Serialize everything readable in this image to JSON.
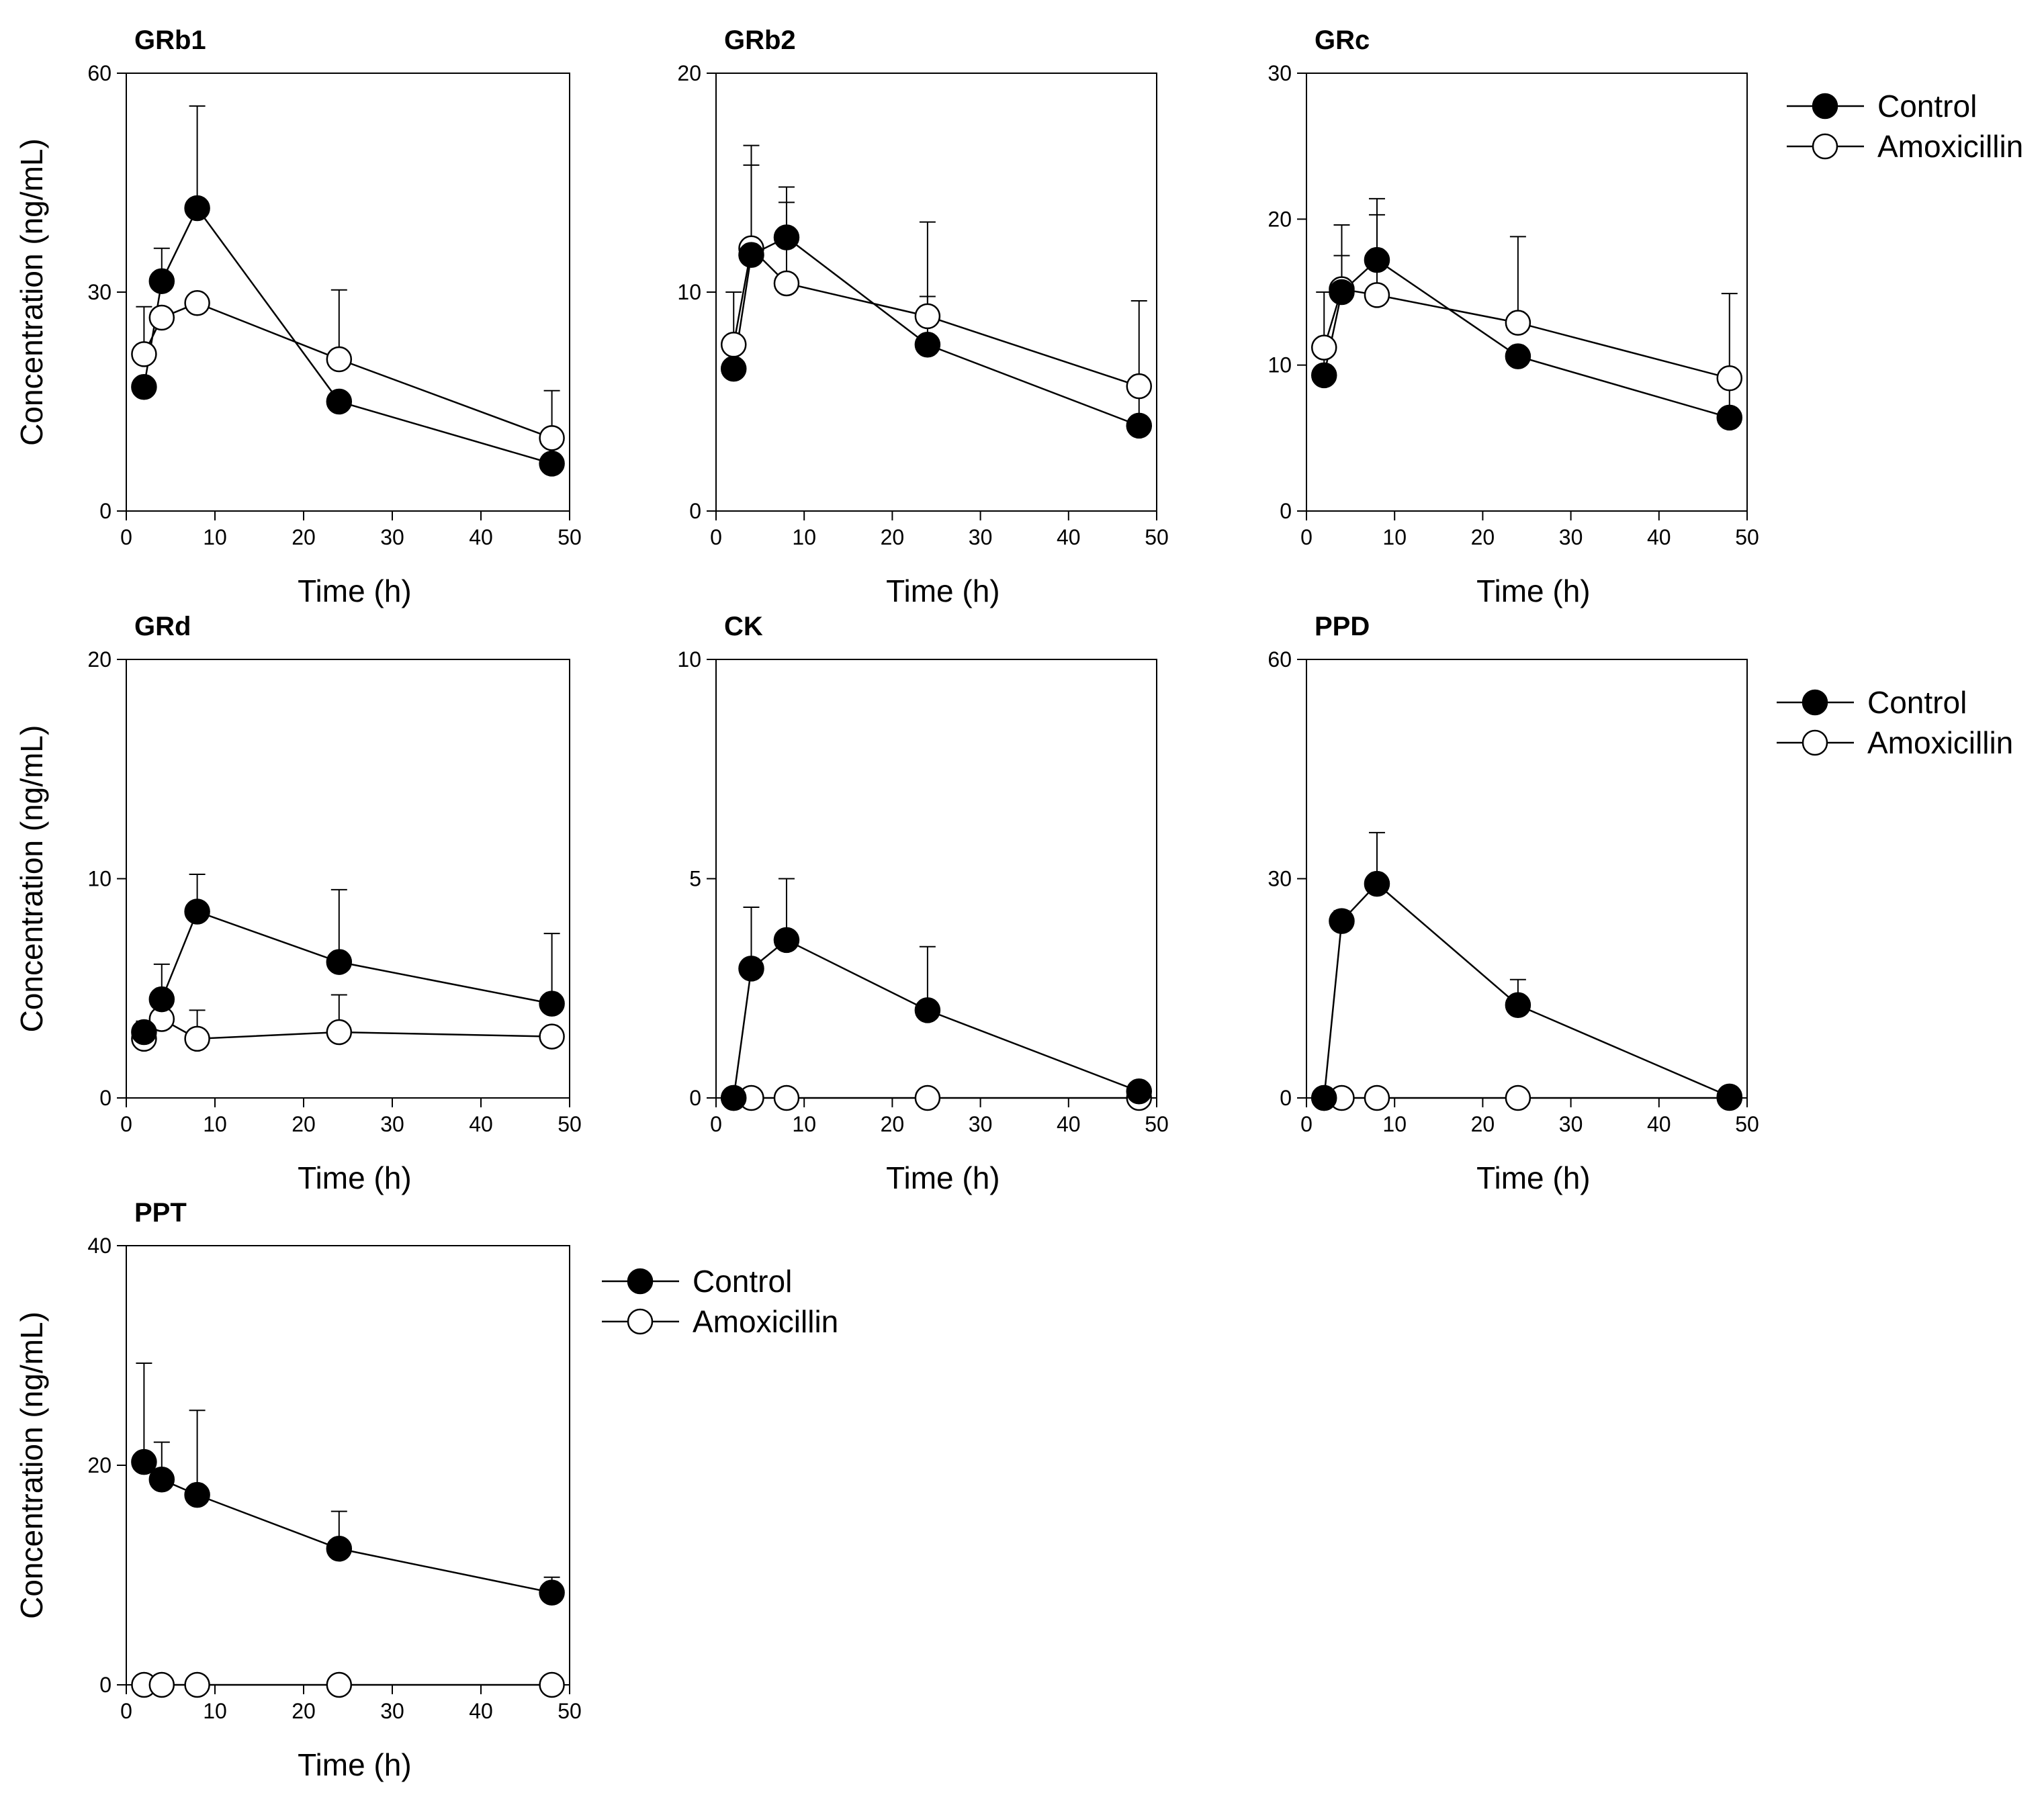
{
  "chart_data": [
    {
      "type": "line",
      "title": "GRb1",
      "xlabel": "Time (h)",
      "ylabel": "Concentration (ng/mL)",
      "xlim": [
        0,
        50
      ],
      "ylim": [
        0,
        60
      ],
      "xticks": [
        0,
        10,
        20,
        30,
        40,
        50
      ],
      "yticks": [
        0,
        30,
        60
      ],
      "x": [
        2,
        4,
        8,
        24,
        48
      ],
      "series": [
        {
          "name": "Control",
          "marker": "filled",
          "values": [
            17.0,
            31.5,
            41.5,
            15.0,
            6.5
          ],
          "error": [
            0,
            4.5,
            14.0,
            0,
            0
          ]
        },
        {
          "name": "Amoxicillin",
          "marker": "open",
          "values": [
            21.5,
            26.5,
            28.5,
            20.8,
            10.0
          ],
          "error": [
            6.5,
            0,
            0,
            9.5,
            6.5
          ]
        }
      ]
    },
    {
      "type": "line",
      "title": "GRb2",
      "xlabel": "Time (h)",
      "ylabel": "",
      "xlim": [
        0,
        50
      ],
      "ylim": [
        0,
        20
      ],
      "xticks": [
        0,
        10,
        20,
        30,
        40,
        50
      ],
      "yticks": [
        0,
        10,
        20
      ],
      "x": [
        2,
        4,
        8,
        24,
        48
      ],
      "series": [
        {
          "name": "Control",
          "marker": "filled",
          "values": [
            6.5,
            11.7,
            12.5,
            7.6,
            3.9
          ],
          "error": [
            0,
            4.1,
            2.3,
            2.2,
            5.7
          ]
        },
        {
          "name": "Amoxicillin",
          "marker": "open",
          "values": [
            7.6,
            12.0,
            10.4,
            8.9,
            5.7
          ],
          "error": [
            2.4,
            4.7,
            3.7,
            4.3,
            0
          ]
        }
      ]
    },
    {
      "type": "line",
      "title": "GRc",
      "xlabel": "Time (h)",
      "ylabel": "",
      "xlim": [
        0,
        50
      ],
      "ylim": [
        0,
        30
      ],
      "xticks": [
        0,
        10,
        20,
        30,
        40,
        50
      ],
      "yticks": [
        0,
        10,
        20,
        30
      ],
      "x": [
        2,
        4,
        8,
        24,
        48
      ],
      "series": [
        {
          "name": "Control",
          "marker": "filled",
          "values": [
            9.3,
            15.0,
            17.2,
            10.6,
            6.4
          ],
          "error": [
            5.7,
            2.5,
            4.2,
            0,
            8.5
          ]
        },
        {
          "name": "Amoxicillin",
          "marker": "open",
          "values": [
            11.2,
            15.2,
            14.8,
            12.9,
            9.1
          ],
          "error": [
            0,
            4.4,
            5.5,
            5.9,
            0
          ]
        }
      ]
    },
    {
      "type": "line",
      "title": "GRd",
      "xlabel": "Time (h)",
      "ylabel": "Concentration (ng/mL)",
      "xlim": [
        0,
        50
      ],
      "ylim": [
        0,
        20
      ],
      "xticks": [
        0,
        10,
        20,
        30,
        40,
        50
      ],
      "yticks": [
        0,
        10,
        20
      ],
      "x": [
        2,
        4,
        8,
        24,
        48
      ],
      "series": [
        {
          "name": "Control",
          "marker": "filled",
          "values": [
            3.0,
            4.5,
            8.5,
            6.2,
            4.3
          ],
          "error": [
            0.5,
            1.6,
            1.7,
            3.3,
            3.2
          ]
        },
        {
          "name": "Amoxicillin",
          "marker": "open",
          "values": [
            2.7,
            3.6,
            2.7,
            3.0,
            2.8
          ],
          "error": [
            0,
            0,
            1.3,
            1.7,
            0
          ]
        }
      ]
    },
    {
      "type": "line",
      "title": "CK",
      "xlabel": "Time (h)",
      "ylabel": "",
      "xlim": [
        0,
        50
      ],
      "ylim": [
        0,
        10
      ],
      "xticks": [
        0,
        10,
        20,
        30,
        40,
        50
      ],
      "yticks": [
        0,
        5,
        10
      ],
      "x": [
        2,
        4,
        8,
        24,
        48
      ],
      "series": [
        {
          "name": "Control",
          "marker": "filled",
          "values": [
            0,
            2.95,
            3.6,
            2.0,
            0.15
          ],
          "error": [
            0,
            1.4,
            1.4,
            1.45,
            0
          ]
        },
        {
          "name": "Amoxicillin",
          "marker": "open",
          "values": [
            0,
            0,
            0,
            0,
            0
          ],
          "error": [
            0,
            0,
            0,
            0,
            0
          ]
        }
      ]
    },
    {
      "type": "line",
      "title": "PPD",
      "xlabel": "Time (h)",
      "ylabel": "",
      "xlim": [
        0,
        50
      ],
      "ylim": [
        0,
        60
      ],
      "xticks": [
        0,
        10,
        20,
        30,
        40,
        50
      ],
      "yticks": [
        0,
        30,
        60
      ],
      "x": [
        2,
        4,
        8,
        24,
        48
      ],
      "series": [
        {
          "name": "Control",
          "marker": "filled",
          "values": [
            0,
            24.2,
            29.3,
            12.7,
            0.2
          ],
          "error": [
            0,
            1.4,
            7.0,
            3.5,
            0
          ]
        },
        {
          "name": "Amoxicillin",
          "marker": "open",
          "values": [
            0,
            0,
            0,
            0,
            0
          ],
          "error": [
            0,
            0,
            0,
            0,
            0
          ]
        }
      ]
    },
    {
      "type": "line",
      "title": "PPT",
      "xlabel": "Time (h)",
      "ylabel": "Concentration (ng/mL)",
      "xlim": [
        0,
        50
      ],
      "ylim": [
        0,
        40
      ],
      "xticks": [
        0,
        10,
        20,
        30,
        40,
        50
      ],
      "yticks": [
        0,
        20,
        40
      ],
      "x": [
        2,
        4,
        8,
        24,
        48
      ],
      "series": [
        {
          "name": "Control",
          "marker": "filled",
          "values": [
            20.3,
            18.7,
            17.3,
            12.4,
            8.4
          ],
          "error": [
            9.0,
            3.4,
            7.7,
            3.4,
            1.4
          ]
        },
        {
          "name": "Amoxicillin",
          "marker": "open",
          "values": [
            0,
            0,
            0,
            0,
            0
          ],
          "error": [
            0,
            0,
            0,
            0,
            0
          ]
        }
      ]
    }
  ],
  "legends": [
    {
      "entries": [
        {
          "label": "Control",
          "marker": "filled"
        },
        {
          "label": "Amoxicillin",
          "marker": "open"
        }
      ]
    },
    {
      "entries": [
        {
          "label": "Control",
          "marker": "filled"
        },
        {
          "label": "Amoxicillin",
          "marker": "open"
        }
      ]
    },
    {
      "entries": [
        {
          "label": "Control",
          "marker": "filled"
        },
        {
          "label": "Amoxicillin",
          "marker": "open"
        }
      ]
    }
  ],
  "colors": {
    "line": "#000000",
    "filled_marker": "#000000",
    "open_marker_fill": "#ffffff",
    "background": "#ffffff"
  }
}
